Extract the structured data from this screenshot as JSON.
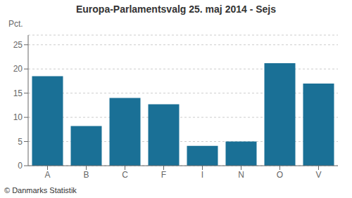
{
  "chart_data": {
    "type": "bar",
    "title": "Europa-Parlamentsvalg 25. maj 2014 - Sejs",
    "ylabel": "Pct.",
    "categories": [
      "A",
      "B",
      "C",
      "F",
      "I",
      "N",
      "O",
      "V"
    ],
    "values": [
      18.5,
      8.2,
      14.0,
      12.7,
      4.1,
      5.0,
      21.2,
      17.0
    ],
    "color": "#1a7096",
    "ylim": [
      0,
      27
    ],
    "yticks": [
      0,
      5,
      10,
      15,
      20,
      25
    ],
    "grid": true,
    "annotations": [
      "© Danmarks Statistik"
    ]
  }
}
